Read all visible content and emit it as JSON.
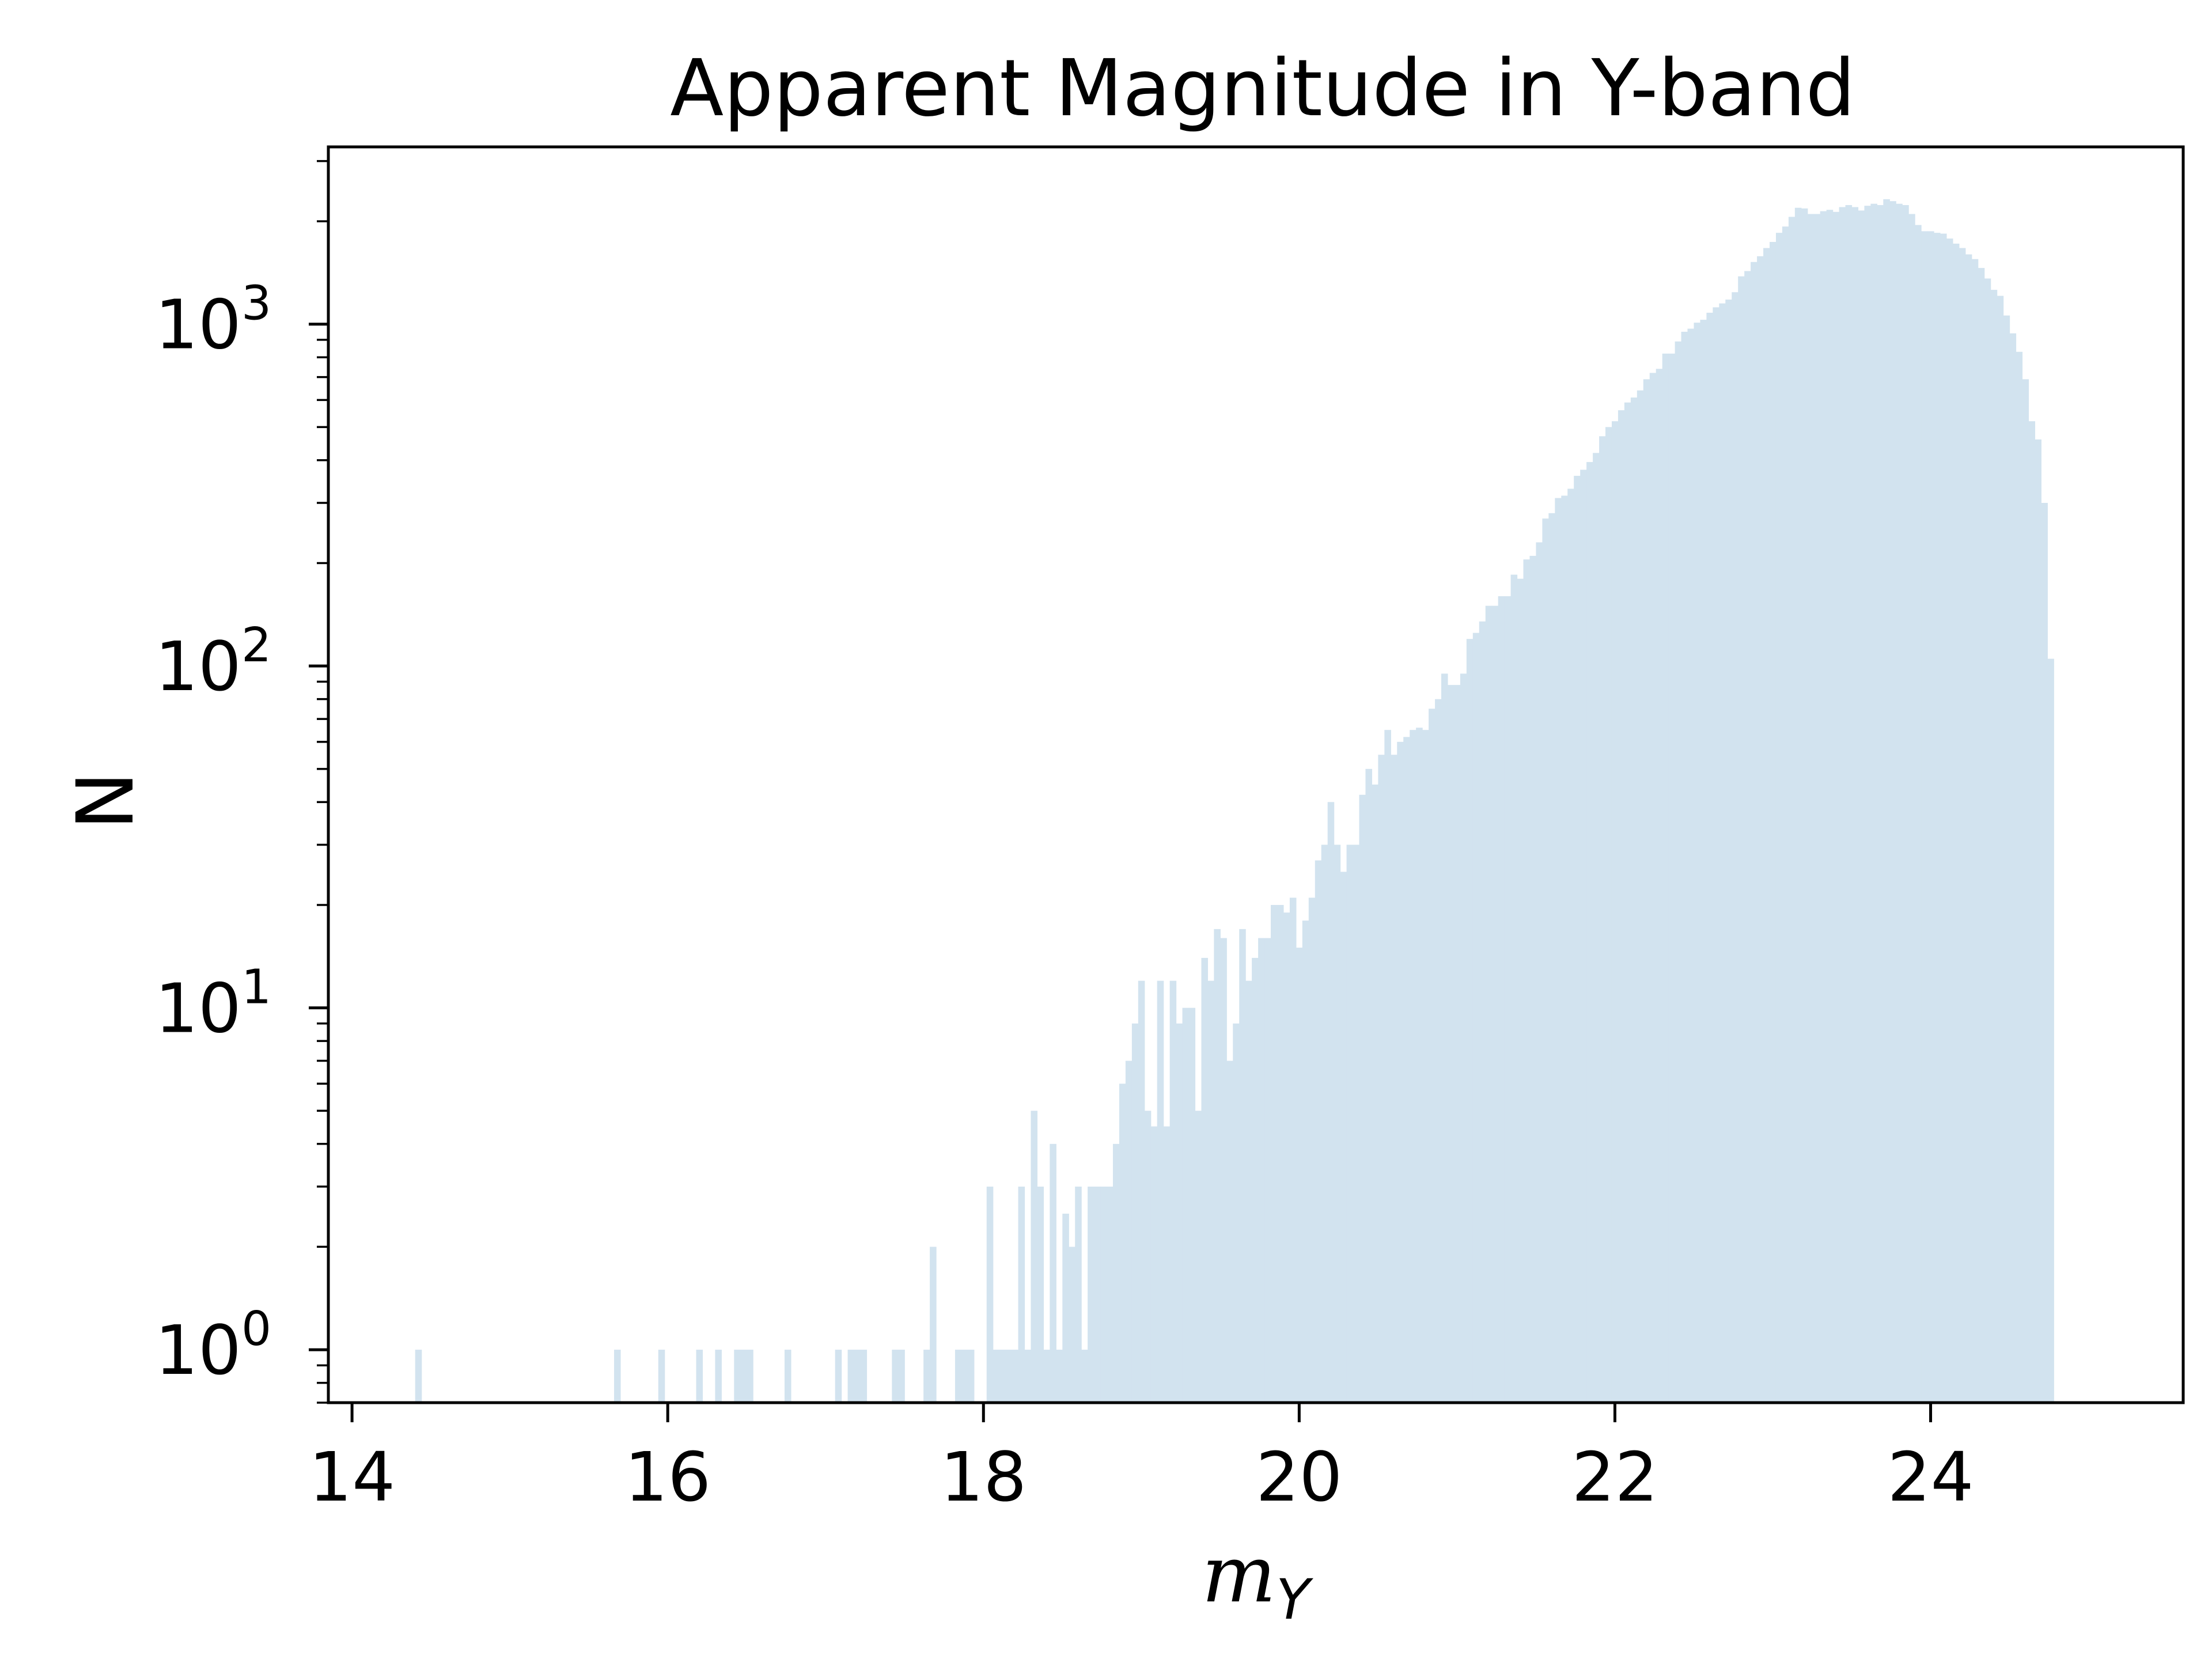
{
  "chart_data": {
    "type": "bar",
    "title": "Apparent Magnitude in Y-band",
    "xlabel": "m_Y",
    "ylabel": "N",
    "xlim": [
      13.85,
      25.6
    ],
    "ylim": [
      0.7,
      3300
    ],
    "yscale": "log",
    "grid": false,
    "bar_color": "#d2e3ef",
    "xticks": [
      14,
      16,
      18,
      20,
      22,
      24
    ],
    "yticks": [
      1,
      10,
      100,
      1000
    ],
    "ytick_labels": [
      {
        "base": "10",
        "exp": "0"
      },
      {
        "base": "10",
        "exp": "1"
      },
      {
        "base": "10",
        "exp": "2"
      },
      {
        "base": "10",
        "exp": "3"
      }
    ],
    "bin_width": 0.04,
    "bins": [
      [
        14.4,
        1
      ],
      [
        15.66,
        1
      ],
      [
        15.94,
        1
      ],
      [
        16.18,
        1
      ],
      [
        16.3,
        1
      ],
      [
        16.42,
        1
      ],
      [
        16.46,
        1
      ],
      [
        16.5,
        1
      ],
      [
        16.74,
        1
      ],
      [
        17.06,
        1
      ],
      [
        17.14,
        1
      ],
      [
        17.18,
        1
      ],
      [
        17.22,
        1
      ],
      [
        17.42,
        1
      ],
      [
        17.46,
        1
      ],
      [
        17.62,
        1
      ],
      [
        17.66,
        2
      ],
      [
        17.82,
        1
      ],
      [
        17.86,
        1
      ],
      [
        17.9,
        1
      ],
      [
        18.02,
        3
      ],
      [
        18.06,
        1
      ],
      [
        18.1,
        1
      ],
      [
        18.14,
        1
      ],
      [
        18.18,
        1
      ],
      [
        18.22,
        3
      ],
      [
        18.26,
        1
      ],
      [
        18.3,
        5
      ],
      [
        18.34,
        3
      ],
      [
        18.38,
        1
      ],
      [
        18.42,
        4
      ],
      [
        18.46,
        1
      ],
      [
        18.5,
        2.5
      ],
      [
        18.54,
        2
      ],
      [
        18.58,
        3
      ],
      [
        18.62,
        1
      ],
      [
        18.66,
        3
      ],
      [
        18.7,
        3
      ],
      [
        18.74,
        3
      ],
      [
        18.78,
        3
      ],
      [
        18.82,
        4
      ],
      [
        18.86,
        6
      ],
      [
        18.9,
        7
      ],
      [
        18.94,
        9
      ],
      [
        18.98,
        12
      ],
      [
        19.02,
        5
      ],
      [
        19.06,
        4.5
      ],
      [
        19.1,
        12
      ],
      [
        19.14,
        4.5
      ],
      [
        19.18,
        12
      ],
      [
        19.22,
        9
      ],
      [
        19.26,
        10
      ],
      [
        19.3,
        10
      ],
      [
        19.34,
        5
      ],
      [
        19.38,
        14
      ],
      [
        19.42,
        12
      ],
      [
        19.46,
        17
      ],
      [
        19.5,
        16
      ],
      [
        19.54,
        7
      ],
      [
        19.58,
        9
      ],
      [
        19.62,
        17
      ],
      [
        19.66,
        12
      ],
      [
        19.7,
        14
      ],
      [
        19.74,
        16
      ],
      [
        19.78,
        16
      ],
      [
        19.82,
        20
      ],
      [
        19.86,
        20
      ],
      [
        19.9,
        19
      ],
      [
        19.94,
        21
      ],
      [
        19.98,
        15
      ],
      [
        20.02,
        18
      ],
      [
        20.06,
        21
      ],
      [
        20.1,
        27
      ],
      [
        20.14,
        30
      ],
      [
        20.18,
        40
      ],
      [
        20.22,
        30
      ],
      [
        20.26,
        25
      ],
      [
        20.3,
        30
      ],
      [
        20.34,
        30
      ],
      [
        20.38,
        42
      ],
      [
        20.42,
        50
      ],
      [
        20.46,
        45
      ],
      [
        20.5,
        55
      ],
      [
        20.54,
        65
      ],
      [
        20.58,
        55
      ],
      [
        20.62,
        60
      ],
      [
        20.66,
        62
      ],
      [
        20.7,
        65
      ],
      [
        20.74,
        66
      ],
      [
        20.78,
        65
      ],
      [
        20.82,
        75
      ],
      [
        20.86,
        80
      ],
      [
        20.9,
        95
      ],
      [
        20.94,
        88
      ],
      [
        20.98,
        88
      ],
      [
        21.02,
        95
      ],
      [
        21.06,
        120
      ],
      [
        21.1,
        125
      ],
      [
        21.14,
        135
      ],
      [
        21.18,
        150
      ],
      [
        21.22,
        150
      ],
      [
        21.26,
        160
      ],
      [
        21.3,
        160
      ],
      [
        21.34,
        185
      ],
      [
        21.38,
        180
      ],
      [
        21.42,
        205
      ],
      [
        21.46,
        210
      ],
      [
        21.5,
        230
      ],
      [
        21.54,
        270
      ],
      [
        21.58,
        280
      ],
      [
        21.62,
        310
      ],
      [
        21.66,
        315
      ],
      [
        21.7,
        330
      ],
      [
        21.74,
        360
      ],
      [
        21.78,
        375
      ],
      [
        21.82,
        395
      ],
      [
        21.86,
        420
      ],
      [
        21.9,
        470
      ],
      [
        21.94,
        500
      ],
      [
        21.98,
        520
      ],
      [
        22.02,
        560
      ],
      [
        22.06,
        590
      ],
      [
        22.1,
        610
      ],
      [
        22.14,
        640
      ],
      [
        22.18,
        690
      ],
      [
        22.22,
        720
      ],
      [
        22.26,
        740
      ],
      [
        22.3,
        820
      ],
      [
        22.34,
        820
      ],
      [
        22.38,
        890
      ],
      [
        22.42,
        950
      ],
      [
        22.46,
        970
      ],
      [
        22.5,
        1010
      ],
      [
        22.54,
        1030
      ],
      [
        22.58,
        1080
      ],
      [
        22.62,
        1120
      ],
      [
        22.66,
        1150
      ],
      [
        22.7,
        1180
      ],
      [
        22.74,
        1240
      ],
      [
        22.78,
        1380
      ],
      [
        22.82,
        1430
      ],
      [
        22.86,
        1520
      ],
      [
        22.9,
        1580
      ],
      [
        22.94,
        1670
      ],
      [
        22.98,
        1740
      ],
      [
        23.02,
        1850
      ],
      [
        23.06,
        1930
      ],
      [
        23.1,
        2060
      ],
      [
        23.14,
        2190
      ],
      [
        23.18,
        2180
      ],
      [
        23.22,
        2100
      ],
      [
        23.26,
        2100
      ],
      [
        23.3,
        2140
      ],
      [
        23.34,
        2160
      ],
      [
        23.38,
        2130
      ],
      [
        23.42,
        2200
      ],
      [
        23.46,
        2230
      ],
      [
        23.5,
        2200
      ],
      [
        23.54,
        2150
      ],
      [
        23.58,
        2220
      ],
      [
        23.62,
        2250
      ],
      [
        23.66,
        2230
      ],
      [
        23.7,
        2320
      ],
      [
        23.74,
        2290
      ],
      [
        23.78,
        2250
      ],
      [
        23.82,
        2230
      ],
      [
        23.86,
        2100
      ],
      [
        23.9,
        1950
      ],
      [
        23.94,
        1870
      ],
      [
        23.98,
        1870
      ],
      [
        24.02,
        1850
      ],
      [
        24.06,
        1840
      ],
      [
        24.1,
        1780
      ],
      [
        24.14,
        1720
      ],
      [
        24.18,
        1670
      ],
      [
        24.22,
        1600
      ],
      [
        24.26,
        1550
      ],
      [
        24.3,
        1460
      ],
      [
        24.34,
        1360
      ],
      [
        24.38,
        1260
      ],
      [
        24.42,
        1210
      ],
      [
        24.46,
        1060
      ],
      [
        24.5,
        940
      ],
      [
        24.54,
        830
      ],
      [
        24.58,
        690
      ],
      [
        24.62,
        520
      ],
      [
        24.66,
        460
      ],
      [
        24.7,
        300
      ],
      [
        24.74,
        105
      ]
    ]
  }
}
